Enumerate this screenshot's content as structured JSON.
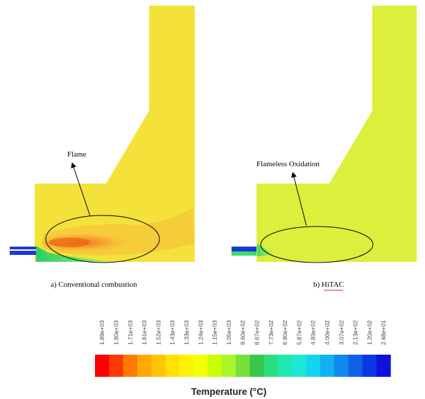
{
  "panels": {
    "left": {
      "caption": "a) Conventional combustion",
      "annotation": "Flame",
      "furnace_fill": "#f4e23a",
      "inlet_color": "#1a3ad8"
    },
    "right": {
      "caption_prefix": "b) ",
      "caption_word": "HiTAC",
      "annotation": "Flameless Oxidation",
      "furnace_fill": "#dcef3c",
      "inlet_color": "#1a3ad8"
    }
  },
  "colorbar": {
    "title": "Temperature (°C)",
    "tick_labels": [
      "1.89e+03",
      "1.80e+03",
      "1.71e+03",
      "1.61e+03",
      "1.52e+03",
      "1.43e+03",
      "1.33e+03",
      "1.24e+03",
      "1.15e+03",
      "1.05e+03",
      "9.60e+02",
      "8.67e+02",
      "7.73e+02",
      "6.80e+02",
      "5.87e+02",
      "4.93e+02",
      "4.00e+02",
      "3.07e+02",
      "2.13e+02",
      "1.20e+02",
      "2.68e+01"
    ],
    "colors": [
      "#ff0000",
      "#ff3a00",
      "#ff7a00",
      "#ffa800",
      "#ffc400",
      "#ffe000",
      "#fff200",
      "#f2ff00",
      "#ccff00",
      "#a8f52a",
      "#78e03a",
      "#37c84a",
      "#2edd80",
      "#20e8b0",
      "#1ce8d8",
      "#14d4f0",
      "#10b0f2",
      "#1088ec",
      "#1060e6",
      "#0a38e0",
      "#1010dc"
    ]
  }
}
